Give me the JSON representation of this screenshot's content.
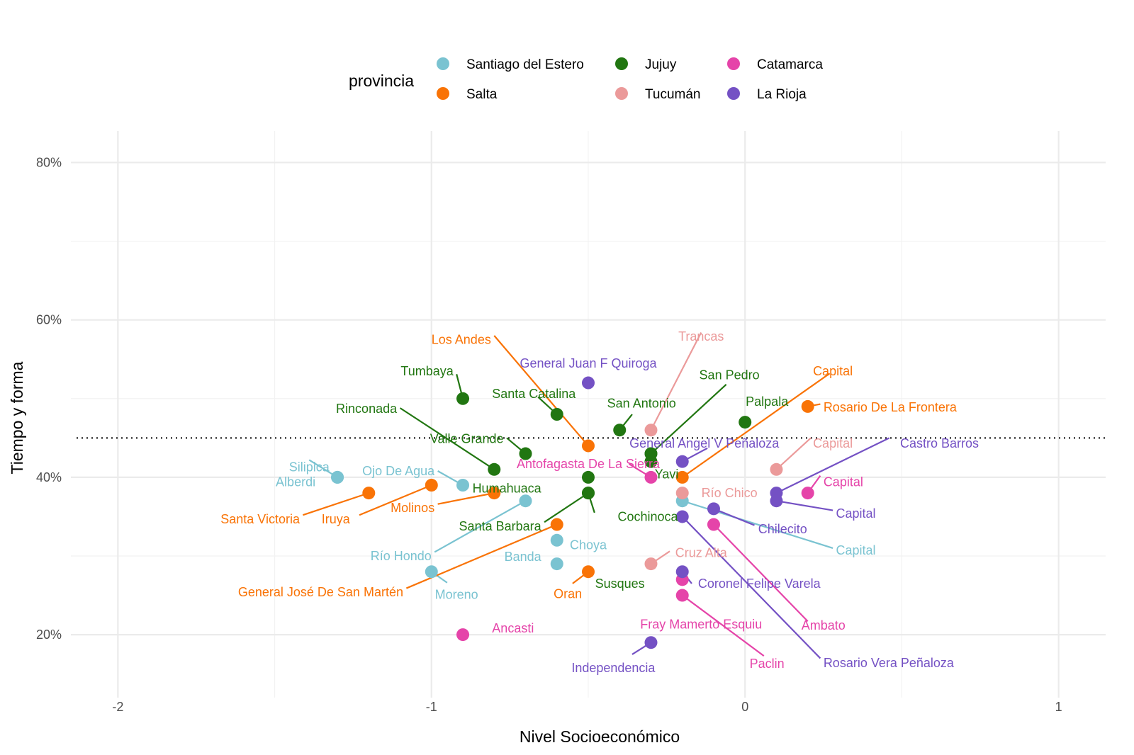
{
  "chart_data": {
    "type": "scatter",
    "title": "",
    "xlabel": "Nivel Socioeconómico",
    "ylabel": "Tiempo y forma",
    "xlim": [
      -2.15,
      1.15
    ],
    "ylim": [
      12,
      84
    ],
    "x_ticks": [
      {
        "value": -2,
        "label": "-2"
      },
      {
        "value": -1,
        "label": "-1"
      },
      {
        "value": 0,
        "label": "0"
      },
      {
        "value": 1,
        "label": "1"
      }
    ],
    "x_minor_ticks": [
      -1.5,
      -0.5,
      0.5
    ],
    "y_ticks": [
      {
        "value": 20,
        "label": "20%"
      },
      {
        "value": 40,
        "label": "40%"
      },
      {
        "value": 60,
        "label": "60%"
      },
      {
        "value": 80,
        "label": "80%"
      }
    ],
    "y_minor_ticks": [
      30,
      50,
      70
    ],
    "reference_line": {
      "y": 45,
      "style": "dotted"
    },
    "grid": true,
    "legend": {
      "title": "provincia",
      "placement": "top",
      "entries": [
        {
          "name": "Santiago del Estero",
          "color": "#7ac3d1"
        },
        {
          "name": "Salta",
          "color": "#f97306"
        },
        {
          "name": "Jujuy",
          "color": "#217611"
        },
        {
          "name": "Tucumán",
          "color": "#eb9a9a"
        },
        {
          "name": "Catamarca",
          "color": "#e544a9"
        },
        {
          "name": "La Rioja",
          "color": "#7451c4"
        }
      ]
    },
    "series": [
      {
        "name": "Santiago del Estero",
        "color": "#7ac3d1",
        "points": [
          {
            "x": -1.3,
            "y": 40,
            "label": "Silipica",
            "lx": -1.39,
            "ly": 41.3,
            "anchor": "middle",
            "seg": [
              -1.39,
              42.2
            ]
          },
          {
            "x": -1.3,
            "y": 40,
            "label": "Alberdi",
            "lx": -1.37,
            "ly": 39.4,
            "anchor": "end"
          },
          {
            "x": -0.9,
            "y": 39,
            "label": "Ojo De Agua",
            "lx": -0.99,
            "ly": 40.8,
            "anchor": "end",
            "seg": [
              -0.98,
              40.8
            ]
          },
          {
            "x": -0.7,
            "y": 37,
            "label": "Río Hondo",
            "lx": -1.0,
            "ly": 30.0,
            "anchor": "end",
            "seg": [
              -0.99,
              30.5
            ]
          },
          {
            "x": -0.6,
            "y": 32,
            "label": "Choya",
            "lx": -0.5,
            "ly": 31.4,
            "anchor": "middle"
          },
          {
            "x": -0.6,
            "y": 29,
            "label": "Banda",
            "lx": -0.65,
            "ly": 29.9,
            "anchor": "end"
          },
          {
            "x": -1.0,
            "y": 28,
            "label": "Moreno",
            "lx": -0.92,
            "ly": 25.1,
            "anchor": "middle",
            "seg": [
              -0.95,
              26.6
            ]
          },
          {
            "x": -0.2,
            "y": 37,
            "label": "Capital",
            "lx": 0.29,
            "ly": 30.7,
            "anchor": "start",
            "seg": [
              0.28,
              31.0
            ]
          }
        ]
      },
      {
        "name": "Salta",
        "color": "#f97306",
        "points": [
          {
            "x": -0.5,
            "y": 44,
            "label": "Los Andes",
            "lx": -0.81,
            "ly": 57.5,
            "anchor": "end",
            "seg": [
              -0.8,
              58.0
            ]
          },
          {
            "x": -1.0,
            "y": 39,
            "label": "Iruya",
            "lx": -1.26,
            "ly": 34.7,
            "anchor": "end",
            "seg": [
              -1.23,
              35.2
            ]
          },
          {
            "x": -1.2,
            "y": 38,
            "label": "Santa Victoria",
            "lx": -1.42,
            "ly": 34.7,
            "anchor": "end",
            "seg": [
              -1.41,
              35.2
            ]
          },
          {
            "x": -0.8,
            "y": 38,
            "label": "Molinos",
            "lx": -0.99,
            "ly": 36.1,
            "anchor": "end",
            "seg": [
              -0.98,
              36.6
            ]
          },
          {
            "x": -0.6,
            "y": 34,
            "label": "General José De San Martén",
            "lx": -1.09,
            "ly": 25.4,
            "anchor": "end",
            "seg": [
              -1.08,
              25.9
            ]
          },
          {
            "x": -0.5,
            "y": 28,
            "label": "Oran",
            "lx": -0.52,
            "ly": 25.2,
            "anchor": "end",
            "seg": [
              -0.55,
              26.5
            ]
          },
          {
            "x": -0.2,
            "y": 40,
            "label": "Capital",
            "lx": 0.28,
            "ly": 53.5,
            "anchor": "middle",
            "seg": [
              0.27,
              53.2
            ]
          },
          {
            "x": 0.2,
            "y": 49,
            "label": "Rosario De La Frontera",
            "lx": 0.25,
            "ly": 48.9,
            "anchor": "start",
            "seg": [
              0.24,
              49.3
            ]
          }
        ]
      },
      {
        "name": "Jujuy",
        "color": "#217611",
        "points": [
          {
            "x": -0.9,
            "y": 50,
            "label": "Tumbaya",
            "lx": -0.93,
            "ly": 53.5,
            "anchor": "end",
            "seg": [
              -0.92,
              53.1
            ]
          },
          {
            "x": -0.6,
            "y": 48,
            "label": "Santa Catalina",
            "lx": -0.54,
            "ly": 50.6,
            "anchor": "end",
            "seg": [
              -0.66,
              50.2
            ]
          },
          {
            "x": -0.8,
            "y": 41,
            "label": "Rinconada",
            "lx": -1.11,
            "ly": 48.7,
            "anchor": "end",
            "seg": [
              -1.1,
              48.8
            ]
          },
          {
            "x": -0.7,
            "y": 43,
            "label": "Valle Grande",
            "lx": -0.77,
            "ly": 44.9,
            "anchor": "end",
            "seg": [
              -0.76,
              45.0
            ]
          },
          {
            "x": -0.4,
            "y": 46,
            "label": "San Antonio",
            "lx": -0.33,
            "ly": 49.4,
            "anchor": "middle",
            "seg": [
              -0.36,
              48.0
            ]
          },
          {
            "x": -0.3,
            "y": 43,
            "label": "San Pedro",
            "lx": -0.05,
            "ly": 53.0,
            "anchor": "middle",
            "seg": [
              -0.06,
              51.8
            ]
          },
          {
            "x": 0.0,
            "y": 47,
            "label": "Palpala",
            "lx": 0.07,
            "ly": 49.6,
            "anchor": "middle"
          },
          {
            "x": -0.3,
            "y": 42,
            "label": "Yavi",
            "lx": -0.25,
            "ly": 40.4,
            "anchor": "middle"
          },
          {
            "x": -0.5,
            "y": 40,
            "label": "Humahuaca",
            "lx": -0.65,
            "ly": 38.6,
            "anchor": "end"
          },
          {
            "x": -0.5,
            "y": 38,
            "label": "Cochinoca",
            "lx": -0.31,
            "ly": 35.0,
            "anchor": "middle",
            "seg": [
              -0.48,
              35.5
            ]
          },
          {
            "x": -0.5,
            "y": 38,
            "label": "Santa Barbara",
            "lx": -0.65,
            "ly": 33.8,
            "anchor": "end",
            "seg": [
              -0.64,
              34.3
            ]
          },
          {
            "x": -0.3,
            "y": 43,
            "label": "Susques",
            "lx": -0.32,
            "ly": 26.5,
            "anchor": "end"
          }
        ]
      },
      {
        "name": "Tucumán",
        "color": "#eb9a9a",
        "points": [
          {
            "x": -0.3,
            "y": 46,
            "label": "Trancas",
            "lx": -0.14,
            "ly": 57.9,
            "anchor": "middle",
            "seg": [
              -0.14,
              58.4
            ]
          },
          {
            "x": 0.1,
            "y": 41,
            "label": "Capital",
            "lx": 0.28,
            "ly": 44.3,
            "anchor": "middle",
            "seg": [
              0.21,
              45.0
            ]
          },
          {
            "x": -0.2,
            "y": 38,
            "label": "Río Chico",
            "lx": -0.05,
            "ly": 38.0,
            "anchor": "middle"
          },
          {
            "x": -0.3,
            "y": 29,
            "label": "Cruz Alta",
            "lx": -0.14,
            "ly": 30.4,
            "anchor": "middle",
            "seg": [
              -0.24,
              30.6
            ]
          }
        ]
      },
      {
        "name": "Catamarca",
        "color": "#e544a9",
        "points": [
          {
            "x": -0.3,
            "y": 40,
            "label": "Antofagasta De La Sierra",
            "lx": -0.5,
            "ly": 41.7,
            "anchor": "middle",
            "seg": [
              -0.37,
              41.7
            ]
          },
          {
            "x": 0.2,
            "y": 38,
            "label": "Capital",
            "lx": 0.25,
            "ly": 39.4,
            "anchor": "start",
            "seg": [
              0.24,
              40.2
            ]
          },
          {
            "x": -0.1,
            "y": 34,
            "label": "Ambato",
            "lx": 0.25,
            "ly": 21.2,
            "anchor": "middle",
            "seg": [
              0.2,
              21.7
            ]
          },
          {
            "x": -0.2,
            "y": 27,
            "label": "Fray Mamerto Esquiu",
            "lx": -0.14,
            "ly": 21.3,
            "anchor": "middle"
          },
          {
            "x": -0.2,
            "y": 25,
            "label": "Paclin",
            "lx": 0.07,
            "ly": 16.3,
            "anchor": "middle",
            "seg": [
              0.06,
              17.3
            ]
          },
          {
            "x": -0.9,
            "y": 20,
            "label": "Ancasti",
            "lx": -0.74,
            "ly": 20.8,
            "anchor": "middle"
          }
        ]
      },
      {
        "name": "La Rioja",
        "color": "#7451c4",
        "points": [
          {
            "x": -0.5,
            "y": 52,
            "label": "General Juan F Quiroga",
            "lx": -0.5,
            "ly": 54.5,
            "anchor": "middle"
          },
          {
            "x": -0.2,
            "y": 42,
            "label": "General Angel V Peñaloza",
            "lx": -0.13,
            "ly": 44.3,
            "anchor": "middle",
            "seg": [
              -0.12,
              43.7
            ]
          },
          {
            "x": 0.1,
            "y": 38,
            "label": "Castro Barros",
            "lx": 0.62,
            "ly": 44.3,
            "anchor": "middle",
            "seg": [
              0.46,
              45.0
            ]
          },
          {
            "x": 0.1,
            "y": 37,
            "label": "Capital",
            "lx": 0.29,
            "ly": 35.4,
            "anchor": "start",
            "seg": [
              0.28,
              35.8
            ]
          },
          {
            "x": -0.1,
            "y": 36,
            "label": "Chilecito",
            "lx": 0.12,
            "ly": 33.4,
            "anchor": "middle",
            "seg": [
              0.03,
              33.9
            ]
          },
          {
            "x": -0.2,
            "y": 35,
            "label": "Rosario Vera Peñaloza",
            "lx": 0.25,
            "ly": 16.4,
            "anchor": "start",
            "seg": [
              0.24,
              17.0
            ]
          },
          {
            "x": -0.2,
            "y": 28,
            "label": "Coronel Felipe Varela",
            "lx": -0.15,
            "ly": 26.5,
            "anchor": "start",
            "seg": [
              -0.17,
              26.5
            ]
          },
          {
            "x": -0.3,
            "y": 19,
            "label": "Independencia",
            "lx": -0.42,
            "ly": 15.8,
            "anchor": "middle",
            "seg": [
              -0.36,
              17.5
            ]
          }
        ]
      }
    ]
  }
}
